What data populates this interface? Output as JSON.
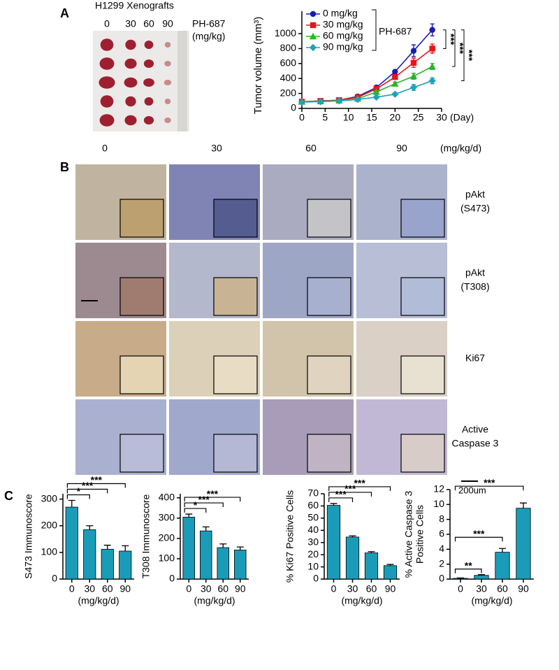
{
  "panel_labels": [
    "A",
    "B",
    "C"
  ],
  "photo": {
    "title": "H1299 Xenografts",
    "doses": [
      "0",
      "30",
      "60",
      "90"
    ],
    "compound": "PH-687",
    "unit": "(mg/kg)"
  },
  "ihc": {
    "doses": [
      "0",
      "30",
      "60",
      "90"
    ],
    "unit": "(mg/kg/d)",
    "rows": [
      [
        "pAkt",
        "(S473)"
      ],
      [
        "pAkt",
        "(T308)"
      ],
      [
        "Ki67"
      ],
      [
        "Active",
        "Caspase 3"
      ]
    ],
    "scale_bar": "200um"
  },
  "chart_data": [
    {
      "type": "line",
      "y_label": "Tumor volume (mm³)",
      "x_label": "(Day)",
      "x": [
        0,
        4,
        8,
        12,
        16,
        20,
        24,
        28
      ],
      "xlim": [
        0,
        30
      ],
      "xticks": [
        0,
        5,
        10,
        15,
        20,
        25,
        30
      ],
      "ylim": [
        0,
        1300
      ],
      "yticks": [
        0,
        200,
        400,
        600,
        800,
        1000
      ],
      "legend_title": "PH-687",
      "series": [
        {
          "name": "0 mg/kg",
          "color": "#1c1cb0",
          "marker": "circle",
          "values": [
            90,
            100,
            110,
            160,
            280,
            490,
            770,
            1050
          ],
          "errors": [
            10,
            10,
            10,
            15,
            20,
            20,
            80,
            80
          ]
        },
        {
          "name": "30 mg/kg",
          "color": "#e8141a",
          "marker": "square",
          "values": [
            90,
            100,
            110,
            150,
            260,
            420,
            610,
            800
          ],
          "errors": [
            10,
            10,
            10,
            15,
            20,
            30,
            60,
            60
          ]
        },
        {
          "name": "60 mg/kg",
          "color": "#2db32d",
          "marker": "triangle",
          "values": [
            90,
            95,
            105,
            130,
            220,
            330,
            430,
            560
          ],
          "errors": [
            10,
            10,
            10,
            10,
            15,
            20,
            40,
            40
          ]
        },
        {
          "name": "90 mg/kg",
          "color": "#1fa3b5",
          "marker": "diamond",
          "values": [
            85,
            90,
            100,
            120,
            150,
            190,
            280,
            370
          ],
          "errors": [
            10,
            10,
            10,
            10,
            10,
            15,
            40,
            40
          ]
        }
      ],
      "comparisons": [
        {
          "series": [
            "0 mg/kg",
            "30 mg/kg"
          ],
          "label": "***"
        },
        {
          "series": [
            "0 mg/kg",
            "60 mg/kg"
          ],
          "label": "***"
        },
        {
          "series": [
            "0 mg/kg",
            "90 mg/kg"
          ],
          "label": "***"
        }
      ]
    },
    {
      "type": "bar",
      "y_label": [
        "S473 Immunoscore"
      ],
      "x_label": "(mg/kg/d)",
      "categories": [
        "0",
        "30",
        "60",
        "90"
      ],
      "values": [
        270,
        185,
        112,
        105
      ],
      "errors": [
        25,
        15,
        15,
        20
      ],
      "color": "#1a9cb8",
      "ylim": [
        0,
        320
      ],
      "yticks": [
        0,
        100,
        200,
        300
      ],
      "comparisons": [
        {
          "groups": [
            "0",
            "30"
          ],
          "label": "*"
        },
        {
          "groups": [
            "0",
            "60"
          ],
          "label": "***"
        },
        {
          "groups": [
            "0",
            "90"
          ],
          "label": "***"
        }
      ]
    },
    {
      "type": "bar",
      "y_label": [
        "T308 Immunoscore"
      ],
      "x_label": "(mg/kg/d)",
      "categories": [
        "0",
        "30",
        "60",
        "90"
      ],
      "values": [
        305,
        237,
        155,
        143
      ],
      "errors": [
        15,
        20,
        18,
        15
      ],
      "color": "#1a9cb8",
      "ylim": [
        0,
        420
      ],
      "yticks": [
        0,
        100,
        200,
        300,
        400
      ],
      "comparisons": [
        {
          "groups": [
            "0",
            "30"
          ],
          "label": "*"
        },
        {
          "groups": [
            "0",
            "60"
          ],
          "label": "***"
        },
        {
          "groups": [
            "0",
            "90"
          ],
          "label": "***"
        }
      ]
    },
    {
      "type": "bar",
      "y_label": [
        "% Ki67 Positive Cells"
      ],
      "x_label": "(mg/kg/d)",
      "categories": [
        "0",
        "30",
        "60",
        "90"
      ],
      "values": [
        60.5,
        34.5,
        21.5,
        11
      ],
      "errors": [
        1.5,
        1,
        1,
        1
      ],
      "color": "#1a9cb8",
      "ylim": [
        0,
        70
      ],
      "yticks": [
        0,
        10,
        20,
        30,
        40,
        50,
        60,
        70
      ],
      "comparisons": [
        {
          "groups": [
            "0",
            "30"
          ],
          "label": "***"
        },
        {
          "groups": [
            "0",
            "60"
          ],
          "label": "***"
        },
        {
          "groups": [
            "0",
            "90"
          ],
          "label": "***"
        }
      ]
    },
    {
      "type": "bar",
      "y_label": [
        "% Active Caspase 3",
        "Positive Cells"
      ],
      "x_label": "(mg/kg/d)",
      "categories": [
        "0",
        "30",
        "60",
        "90"
      ],
      "values": [
        0.1,
        0.5,
        3.6,
        9.5
      ],
      "errors": [
        0.05,
        0.1,
        0.5,
        0.7
      ],
      "color": "#1a9cb8",
      "ylim": [
        0,
        12
      ],
      "yticks": [
        0,
        2,
        4,
        6,
        8,
        10,
        12
      ],
      "comparisons": [
        {
          "groups": [
            "0",
            "30"
          ],
          "label": "**"
        },
        {
          "groups": [
            "0",
            "60"
          ],
          "label": "***"
        },
        {
          "groups": [
            "0",
            "90"
          ],
          "label": "***"
        }
      ]
    }
  ]
}
